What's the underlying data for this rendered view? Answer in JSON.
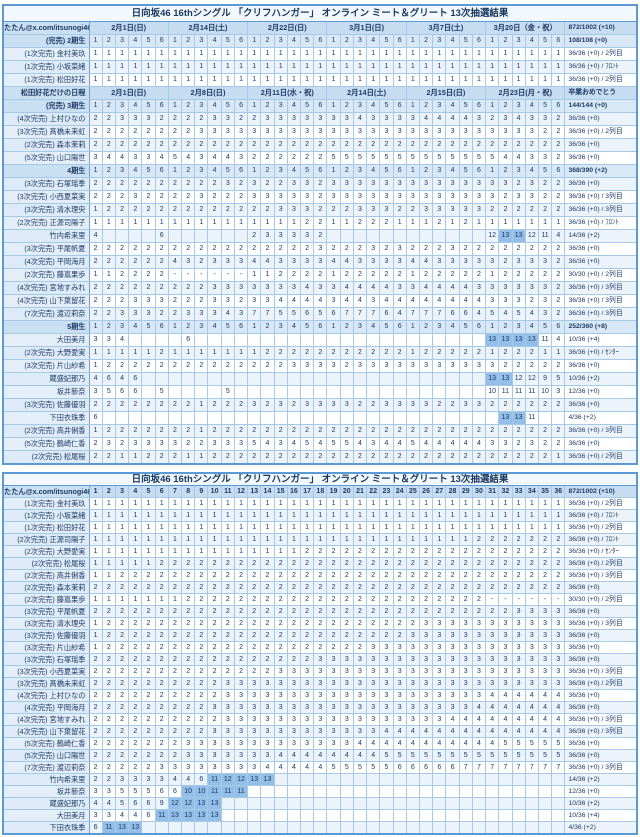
{
  "meta": {
    "accent_color": "#5B9BD5",
    "highlight_color": "#92BEE8",
    "header_bg": "#C5DCF1",
    "text_color": "#1E3A66"
  },
  "shared": {
    "title": "日向坂46 16thシングル 「クリフハンガー」 オンライン ミート＆グリート 13次抽選結果",
    "handle": "たたん@x.com/itsunogi46",
    "total_summary": "872/1002 (+10)",
    "slot_cells": "1 2 3 4 5 6 1 2 3 4 5 6 1 2 3 4 5 6 1 2 3 4 5 6 1 2 3 4 5 6 1 2 3 4 5 6",
    "col_cells": "1 2 3 4 5 6 7 8 9 10 11 12 13 14 15 16 17 18 19 20 21 22 23 24 25 26 27 28 29 30 31 32 33 34 35 36"
  },
  "tables": [
    {
      "name": "lottery-table-by-date",
      "header_type": "dates",
      "date_groups": [
        "2月1日(日)",
        "2月14日(土)",
        "2月22日(日)",
        "3月1日(日)",
        "3月7日(土)",
        "3月20日（金・祝）"
      ],
      "rows": [
        {
          "t": "slots",
          "label": "(完売) 2期生",
          "sum": "108/108 (+0)"
        },
        {
          "t": "m",
          "label": "(1次完売) 金村美玖",
          "cells": "1*36",
          "sum": "36/36 (+0) / 2列目"
        },
        {
          "t": "m",
          "label": "(1次完売) 小坂菜緒",
          "cells": "1*36",
          "sum": "36/36 (+0) / ﾌﾛﾝﾄ"
        },
        {
          "t": "m",
          "label": "(1次完売) 松田好花",
          "cells": "1*36",
          "sum": "36/36 (+0) / 2列目"
        },
        {
          "t": "schedule",
          "label": "松田好花だけの日程",
          "groups": [
            "2月1日(日)",
            "2月8日(日)",
            "2月11日(水・祝)",
            "2月14日(土)",
            "2月15日(日)",
            "2月23日(月・祝)"
          ],
          "sum": "卒業おめでとう"
        },
        {
          "t": "slots",
          "label": "(完売) 3期生",
          "sum": "144/144 (+0)"
        },
        {
          "t": "m",
          "label": "(4次完売) 上村ひなの",
          "cells": "2 2 3 3 3 2 2 2 2 3 3 2 2 3 3 3 3 3 3 3 4 3 3 3 3 4 4 4 4 3 2 3 4 3 3 2",
          "sum": "36/36 (+0)"
        },
        {
          "t": "m",
          "label": "(3次完売) 髙橋未来虹",
          "cells": "2*8 3*26 2 2",
          "sum": "36/36 (+0) / 2列目"
        },
        {
          "t": "m",
          "label": "(2次完売) 森本茉莉",
          "cells": "2*36",
          "sum": "36/36 (+0)"
        },
        {
          "t": "m",
          "label": "(5次完売) 山口陽世",
          "cells": "3 4 4 3 3 4 5 4 3 4 4 3 2*6 5*13 4 4 3 3 2",
          "sum": "36/36 (+0)"
        },
        {
          "t": "slots",
          "label": "4期生",
          "sum": "368/390 (+2)"
        },
        {
          "t": "m",
          "label": "(3次完売) 石塚瑶季",
          "cells": "2*10 3 2 3 2 2 3 3 2 3*12 3 3 2 3 2 2",
          "sum": "36/36 (+0)"
        },
        {
          "t": "m",
          "label": "(3次完売) 小西夏菜実",
          "cells": "2 2 2 3 2 2 2 2 3 2 2 2 3*5 2 3*12 3 2 3 3 2 2",
          "sum": "36/36 (+0) / 3列目"
        },
        {
          "t": "m",
          "label": "(3次完売) 清水理央",
          "cells": "1 2*13 3 3 3 2 2 2 3 3 3 2 2 3*5 2*6",
          "sum": "36/36 (+0) / 3列目"
        },
        {
          "t": "m",
          "label": "(2次完売) 正源司陽子",
          "cells": "1*16 2 2 1 1 2 2 2 1 1 1 2 1 2 1 1*6",
          "sum": "36/36 (+0) / ﾌﾛﾝﾄ"
        },
        {
          "t": "m",
          "label": "竹内希来里",
          "cells": "4 _*4 6 _*6 2 3 3 3 3 2 _*12 12 13 13 12 11 4",
          "sum": "14/36 (+2)",
          "hl": [
            31,
            32
          ]
        },
        {
          "t": "m",
          "label": "(3次完売) 平尾帆夏",
          "cells": "2*17 3 2 2 2 3 2 3 2 2 2 3 2 2 2*6",
          "sum": "36/36 (+0)"
        },
        {
          "t": "m",
          "label": "(4次完売) 平岡海月",
          "cells": "2*6 4 3 2 3 3 3 4 4 3 3 3 3 4 4 3 3 3 3 4 4 3 3 3 3 3 2 3 3 3 2",
          "sum": "36/36 (+0)"
        },
        {
          "t": "m",
          "label": "(2次完売) 藤嶌果歩",
          "cells": "1 1 2 2 2 2 -*6 1 1 2 2 2 2 1 2*5 1 2*5 1 2*5",
          "sum": "30/30 (+0) / 2列目"
        },
        {
          "t": "m",
          "label": "(4次完売) 宮地すみれ",
          "cells": "2*9 3*7 4 3 3 4*4 3 3 4*4 3 3*5 2",
          "sum": "36/36 (+0) / 3列目"
        },
        {
          "t": "m",
          "label": "(4次完売) 山下葉留花",
          "cells": "2 2 2 3 3 3 2 2 2 3 3 2 3 3 4*4 3 4 4 3 4 4 4*6 3 3 3 2 3 2",
          "sum": "36/36 (+0) / 3列目"
        },
        {
          "t": "m",
          "label": "(7次完売) 渡辺莉奈",
          "cells": "2 2 3 3 3 2 2 3 3 3 4 3 7 7 5 5 6 5 6 7 7 7 6 4 7 7 7 6 6 4 5 4 5 4 3 2",
          "sum": "36/36 (+0) / 3列目"
        },
        {
          "t": "slots",
          "label": "5期生",
          "sum": "252/360 (+8)"
        },
        {
          "t": "m",
          "label": "大田美月",
          "cells": "3 3 4 _*4 6 _*22 13 13 13 13 11 4",
          "sum": "10/36 (+4)",
          "hl": [
            30,
            31,
            32,
            33
          ]
        },
        {
          "t": "m",
          "label": "(2次完売) 大野愛実",
          "cells": "1*5 2 1*7 2*11 1 2*5 1 2 2 2 1 1",
          "sum": "36/36 (+0) / ｾﾝﾀｰ"
        },
        {
          "t": "m",
          "label": "(3次完売) 片山紗希",
          "cells": "1 2*14 3*4 2 3*11 2*5",
          "sum": "36/36 (+0)"
        },
        {
          "t": "m",
          "label": "蔵盛妃那乃",
          "cells": "4 6 4 6 _*26 13 13 12 12 9 5",
          "sum": "10/36 (+2)",
          "hl": [
            30,
            31
          ]
        },
        {
          "t": "m",
          "label": "坂井新奈",
          "cells": "3 5 6 6 _ 5 _*4 5 _*19 10 11 11 11 10 3",
          "sum": "12/36 (+0)"
        },
        {
          "t": "m",
          "label": "(3次完売) 佐藤優羽",
          "cells": "2*8 1 2 2 2 3 2 3 2 3 3 3 3 2 2 3 3 3 3 2 2 3 3 2*6",
          "sum": "36/36 (+0)"
        },
        {
          "t": "m",
          "label": "下田衣珠季",
          "cells": "6 _*30 13 13 11 _ _",
          "sum": "4/36 (+2)",
          "hl": [
            31,
            32
          ]
        },
        {
          "t": "m",
          "label": "(2次完売) 高井俐香",
          "cells": "1 2*7 1 2*27",
          "sum": "36/36 (+0) / 3列目"
        },
        {
          "t": "m",
          "label": "(5次完売) 鶴崎仁香",
          "cells": "2 3 2 3 3 3 3 2 2 3 3 3 5 4 3 4 5 4 5 5 4 3 4 4 5 4 4 4 4 4 3 3 2 3 2 2",
          "sum": "36/36 (+0)"
        },
        {
          "t": "m",
          "label": "(2次完売) 松尾桜",
          "cells": "2 2 1 1 2 2 2 1 1 2*26 1",
          "sum": "36/36 (+0) / 2列目"
        }
      ]
    },
    {
      "name": "lottery-table-sorted",
      "header_type": "cols",
      "rows": [
        {
          "t": "m",
          "label": "(1次完売) 金村美玖",
          "cells": "1*36",
          "sum": "36/36 (+0) / 2列目"
        },
        {
          "t": "m",
          "label": "(1次完売) 小坂菜緒",
          "cells": "1*36",
          "sum": "36/36 (+0) / ﾌﾛﾝﾄ"
        },
        {
          "t": "m",
          "label": "(1次完売) 松田好花",
          "cells": "1*36",
          "sum": "36/36 (+0) / 2列目"
        },
        {
          "t": "m",
          "label": "(2次完売) 正源司陽子",
          "cells": "1*29 2*7",
          "sum": "36/36 (+0) / ﾌﾛﾝﾄ"
        },
        {
          "t": "m",
          "label": "(2次完売) 大野愛実",
          "cells": "1*16 2*20",
          "sum": "36/36 (+0) / ｾﾝﾀｰ"
        },
        {
          "t": "m",
          "label": "(2次完売) 松尾桜",
          "cells": "1*5 2*31",
          "sum": "36/36 (+0) / 2列目"
        },
        {
          "t": "m",
          "label": "(2次完売) 高井俐香",
          "cells": "1 1 2*34",
          "sum": "36/36 (+0) / 3列目"
        },
        {
          "t": "m",
          "label": "(2次完売) 森本茉莉",
          "cells": "2*36",
          "sum": "36/36 (+0)"
        },
        {
          "t": "m",
          "label": "(2次完売) 藤嶌果歩",
          "cells": "1*7 2*23 -*6",
          "sum": "30/30 (+0) / 2列目"
        },
        {
          "t": "m",
          "label": "(3次完売) 平尾帆夏",
          "cells": "2*32 3*4",
          "sum": "36/36 (+0)"
        },
        {
          "t": "m",
          "label": "(3次完売) 清水理央",
          "cells": "1 2*24 3*11",
          "sum": "36/36 (+0) / 3列目"
        },
        {
          "t": "m",
          "label": "(3次完売) 佐藤優羽",
          "cells": "1 2*23 3*12",
          "sum": "36/36 (+0)"
        },
        {
          "t": "m",
          "label": "(3次完売) 片山紗希",
          "cells": "1 2*20 3*15",
          "sum": "36/36 (+0)"
        },
        {
          "t": "m",
          "label": "(3次完売) 石塚瑶季",
          "cells": "2*17 3*19",
          "sum": "36/36 (+0)"
        },
        {
          "t": "m",
          "label": "(3次完売) 小西夏菜実",
          "cells": "2*14 3*22",
          "sum": "36/36 (+0) / 3列目"
        },
        {
          "t": "m",
          "label": "(3次完売) 髙橋未来虹",
          "cells": "2*10 3*26",
          "sum": "36/36 (+0) / 2列目"
        },
        {
          "t": "m",
          "label": "(4次完売) 上村ひなの",
          "cells": "2*10 3*20 4*6",
          "sum": "36/36 (+0)"
        },
        {
          "t": "m",
          "label": "(4次完売) 平岡海月",
          "cells": "2*9 3*20 4*7",
          "sum": "36/36 (+0)"
        },
        {
          "t": "m",
          "label": "(4次完売) 宮地すみれ",
          "cells": "2*10 3*17 4*9",
          "sum": "36/36 (+0) / 3列目"
        },
        {
          "t": "m",
          "label": "(4次完売) 山下葉留花",
          "cells": "2*9 3*13 4*14",
          "sum": "36/36 (+0) / 3列目"
        },
        {
          "t": "m",
          "label": "(5次完売) 鶴崎仁香",
          "cells": "2*7 3*13 4*11 5*5",
          "sum": "36/36 (+0)"
        },
        {
          "t": "m",
          "label": "(5次完売) 山口陽世",
          "cells": "2*7 3*7 4*8 5*14",
          "sum": "36/36 (+0)"
        },
        {
          "t": "m",
          "label": "(7次完売) 渡辺莉奈",
          "cells": "2*5 3*8 4*5 5*5 6*5 7*8",
          "sum": "36/36 (+0) / 3列目"
        },
        {
          "t": "m",
          "label": "竹内希来里",
          "cells": "2 2 3 3 3 3 4 4 6 11 12 12 13 13 _*22",
          "sum": "14/36 (+2)",
          "hl": [
            9,
            10,
            11,
            12,
            13
          ]
        },
        {
          "t": "m",
          "label": "坂井新奈",
          "cells": "3 3 5 5 5 6 6 10 10 11 11 11 _*24",
          "sum": "12/36 (+0)",
          "hl": [
            7,
            8,
            9,
            10,
            11
          ]
        },
        {
          "t": "m",
          "label": "蔵盛妃那乃",
          "cells": "4 4 5 6 6 9 12 12 13 13 _*26",
          "sum": "10/36 (+2)",
          "hl": [
            6,
            7,
            8,
            9
          ]
        },
        {
          "t": "m",
          "label": "大田美月",
          "cells": "3 3 4 4 6 11 13 13 13 13 _*26",
          "sum": "10/36 (+4)",
          "hl": [
            5,
            6,
            7,
            8,
            9
          ]
        },
        {
          "t": "m",
          "label": "下田衣珠季",
          "cells": "6 11 13 13 _*32",
          "sum": "4/36 (+2)",
          "hl": [
            1,
            2,
            3
          ]
        }
      ]
    }
  ]
}
